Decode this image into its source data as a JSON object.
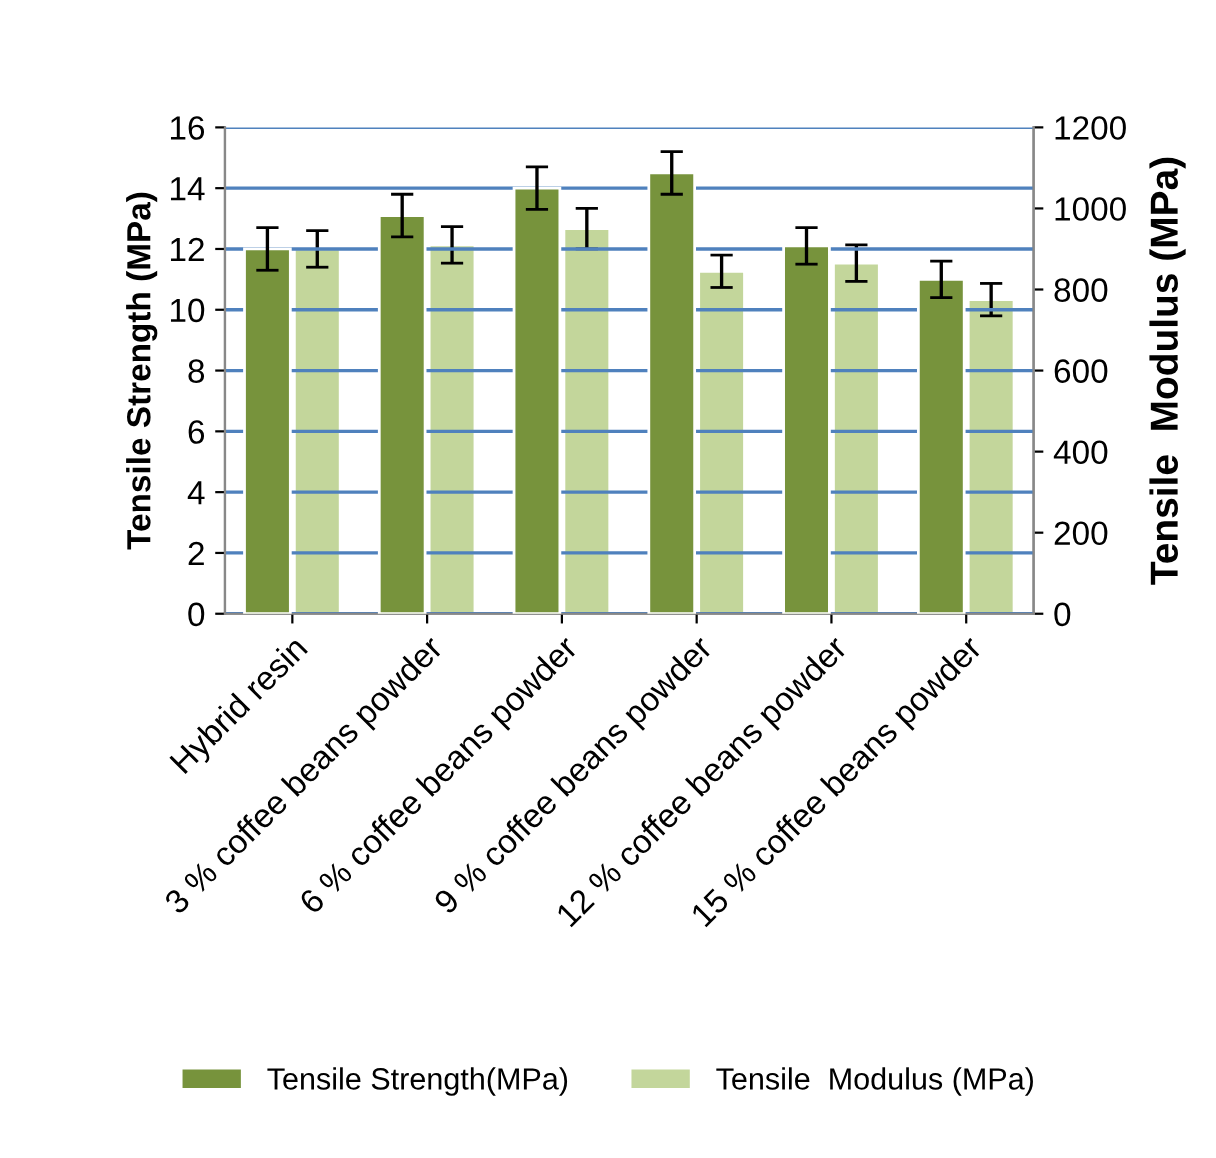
{
  "chart_data": {
    "type": "bar",
    "ylabel": "Tensile Strength (MPa)",
    "y2label": "Tensile  Modulus (MPa)",
    "categories": [
      "Hybrid resin",
      "3 % coffee beans powder",
      "6 % coffee beans powder",
      "9 % coffee beans powder",
      "12 % coffee beans powder",
      "15 % coffee beans powder"
    ],
    "series": [
      {
        "name": "Tensile Strength(MPa)",
        "color": "#77933c",
        "values": [
          12,
          13.1,
          14,
          14.5,
          12.1,
          11
        ],
        "errors": [
          0.7,
          0.7,
          0.7,
          0.7,
          0.6,
          0.6
        ]
      },
      {
        "name": "Tensile  Modulus (MPa)",
        "color": "#c3d69b",
        "axis": "y2",
        "values": [
          900,
          910,
          950,
          845,
          865,
          775
        ],
        "errors": [
          45,
          45,
          50,
          40,
          45,
          40
        ]
      }
    ],
    "ylim": [
      0,
      16
    ],
    "yticks": [
      0,
      2,
      4,
      6,
      8,
      10,
      12,
      14,
      16
    ],
    "y2lim": [
      0,
      1200
    ],
    "y2ticks": [
      0,
      200,
      400,
      600,
      800,
      1000,
      1200
    ],
    "grid": "y",
    "legend": "bottom"
  }
}
